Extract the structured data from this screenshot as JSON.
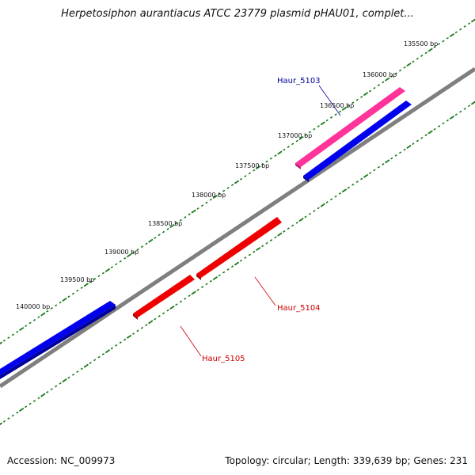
{
  "title": "Herpetosiphon aurantiacus ATCC 23779 plasmid pHAU01, complet...",
  "footer": {
    "accession": "Accession: NC_009973",
    "summary": "Topology: circular; Length: 339,639 bp; Genes: 231"
  },
  "ticks": [
    {
      "label": "135500 bp"
    },
    {
      "label": "136000 bp"
    },
    {
      "label": "136500 bp"
    },
    {
      "label": "137000 bp"
    },
    {
      "label": "137500 bp"
    },
    {
      "label": "138000 bp"
    },
    {
      "label": "138500 bp"
    },
    {
      "label": "139000 bp"
    },
    {
      "label": "139500 bp"
    },
    {
      "label": "140000 bp"
    }
  ],
  "genes": [
    {
      "name": "Haur_5103",
      "color": "#000099"
    },
    {
      "name": "Haur_5104",
      "color": "#cc0000"
    },
    {
      "name": "Haur_5105",
      "color": "#cc0000"
    }
  ],
  "colors": {
    "backbone": "#7f7f7f",
    "tick": "#1a7a1a",
    "forward_cds": "#ff3399",
    "forward_strand_block": "#0000ee",
    "reverse_cds": "#ee0000"
  }
}
